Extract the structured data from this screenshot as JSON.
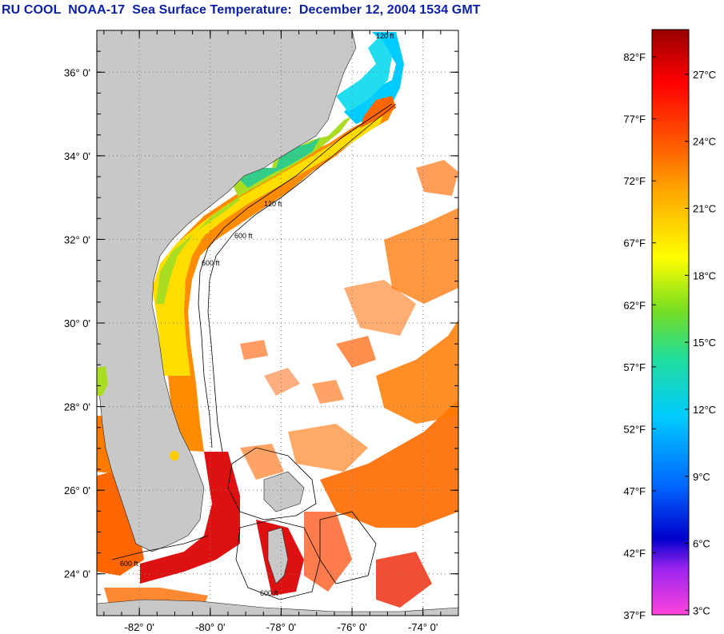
{
  "title": "RU COOL  NOAA-17  Sea Surface Temperature:  December 12, 2004 1534 GMT",
  "map": {
    "lat_labels": [
      "36° 0'",
      "34° 0'",
      "32° 0'",
      "30° 0'",
      "28° 0'",
      "26° 0'",
      "24° 0'"
    ],
    "lat_values": [
      36,
      34,
      32,
      30,
      28,
      26,
      24
    ],
    "lon_labels": [
      "-82° 0'",
      "-80° 0'",
      "-78° 0'",
      "-76° 0'",
      "-74° 0'"
    ],
    "lon_values": [
      -82,
      -80,
      -78,
      -76,
      -74
    ],
    "lat_range": [
      23.0,
      37.0
    ],
    "lon_range": [
      -83.2,
      -73.0
    ],
    "contour_labels": [
      "120 ft",
      "120 ft",
      "600 ft",
      "600 ft",
      "600 ft",
      "600 ft"
    ],
    "colors": {
      "land": "#c8c8c8",
      "sea_bg": "#ffffff",
      "grid": "#777777"
    }
  },
  "colorbar": {
    "f_labels": [
      "82°F",
      "77°F",
      "72°F",
      "67°F",
      "62°F",
      "57°F",
      "52°F",
      "47°F",
      "42°F",
      "37°F"
    ],
    "c_labels": [
      "27°C",
      "24°C",
      "21°C",
      "18°C",
      "15°C",
      "12°C",
      "9°C",
      "6°C",
      "3°C"
    ],
    "range_c": [
      2.8,
      29.0
    ],
    "range_f": [
      37,
      84.2
    ],
    "stops": [
      "#ff44dd",
      "#9922ee",
      "#0000cc",
      "#0066ff",
      "#00ccff",
      "#22dd99",
      "#77dd22",
      "#ffff00",
      "#ffaa00",
      "#ff5500",
      "#ff0000",
      "#990000"
    ]
  }
}
